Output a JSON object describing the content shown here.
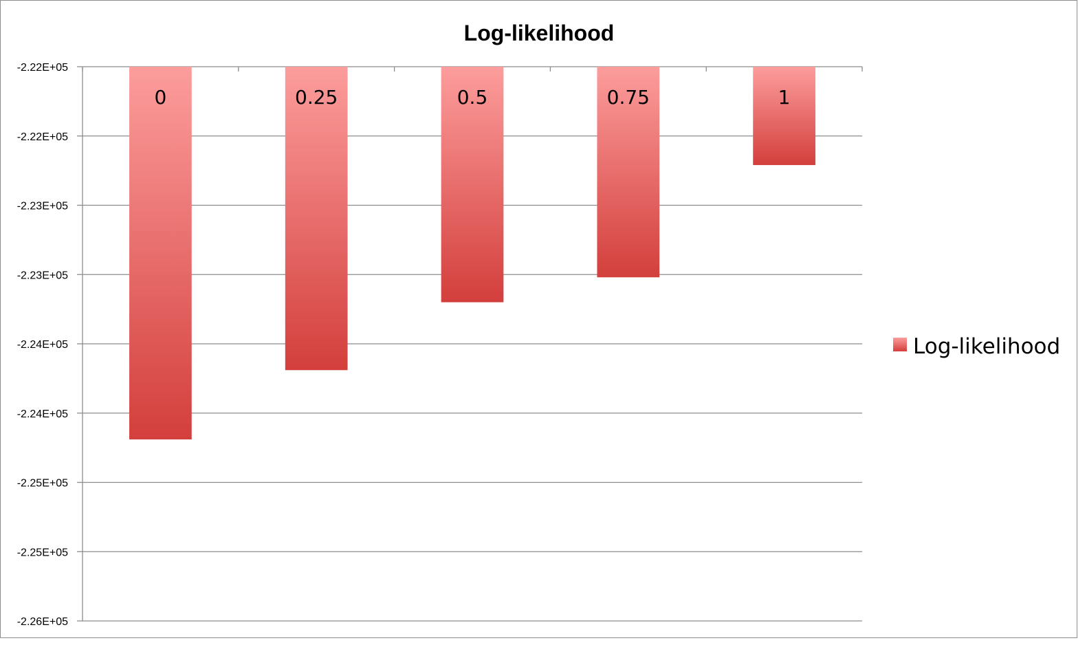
{
  "chart_data": {
    "type": "bar",
    "title": "Log-likelihood",
    "xlabel": "",
    "ylabel": "",
    "categories": [
      "0",
      "0.25",
      "0.5",
      "0.75",
      "1"
    ],
    "series": [
      {
        "name": "Log-likelihood",
        "values": [
          -224690,
          -224190,
          -223700,
          -223520,
          -222710
        ]
      }
    ],
    "data_labels": [
      "0",
      "0.25",
      "0.5",
      "0.75",
      "1"
    ],
    "y_ticks": [
      {
        "value": -222000,
        "label": "-2.22E+05"
      },
      {
        "value": -222500,
        "label": "-2.22E+05"
      },
      {
        "value": -223000,
        "label": "-2.23E+05"
      },
      {
        "value": -223500,
        "label": "-2.23E+05"
      },
      {
        "value": -224000,
        "label": "-2.24E+05"
      },
      {
        "value": -224500,
        "label": "-2.24E+05"
      },
      {
        "value": -225000,
        "label": "-2.25E+05"
      },
      {
        "value": -225500,
        "label": "-2.25E+05"
      },
      {
        "value": -226000,
        "label": "-2.26E+05"
      }
    ],
    "ylim": [
      -226000,
      -222000
    ],
    "grid": true,
    "legend": "right",
    "colors": {
      "bar_top": "#fc9d9c",
      "bar_bottom": "#d33f3c",
      "grid": "#8c8c8c",
      "axis": "#8c8c8c"
    }
  }
}
